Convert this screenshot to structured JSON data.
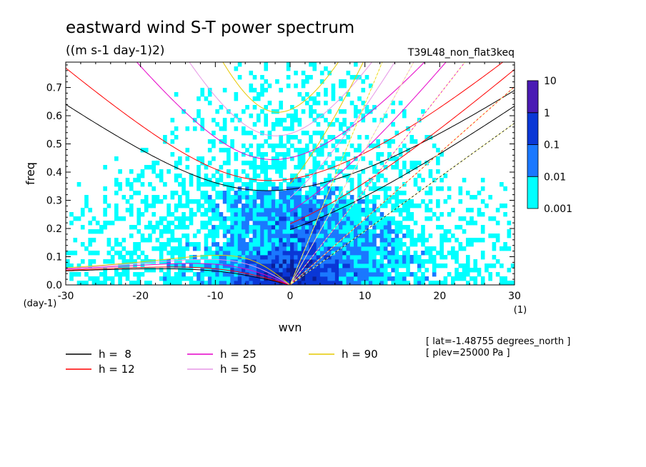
{
  "chart_data": {
    "type": "heatmap",
    "title": "eastward wind S-T power spectrum",
    "subtitle": "((m s-1 day-1)2)",
    "run_label": "T39L48_non_flat3keq",
    "xlabel": "wvn",
    "xunit": "(1)",
    "ylabel": "freq",
    "yunit": "(day-1)",
    "xlim": [
      -30,
      30
    ],
    "ylim": [
      0,
      0.79
    ],
    "xticks": [
      -30,
      -20,
      -10,
      0,
      10,
      20,
      30
    ],
    "yticks": [
      0.0,
      0.1,
      0.2,
      0.3,
      0.4,
      0.5,
      0.6,
      0.7
    ],
    "xtick_labels": [
      "-30",
      "-20",
      "-10",
      "0",
      "10",
      "20",
      "30"
    ],
    "ytick_labels": [
      "0.0",
      "0.1",
      "0.2",
      "0.3",
      "0.4",
      "0.5",
      "0.6",
      "0.7"
    ],
    "colorbar": {
      "levels": [
        "0.001",
        "0.01",
        "0.1",
        "1",
        "10"
      ],
      "colors": [
        "#00ffff",
        "#1a78ff",
        "#0a37d6",
        "#0a1e96",
        "#4a1ab4"
      ]
    },
    "background_color": "#ffffff",
    "dispersion_curves": [
      {
        "label": "h =  8",
        "h": 8,
        "color": "#000000"
      },
      {
        "label": "h = 12",
        "h": 12,
        "color": "#ff0000"
      },
      {
        "label": "h = 25",
        "h": 25,
        "color": "#e600c8"
      },
      {
        "label": "h = 50",
        "h": 50,
        "color": "#e696e6"
      },
      {
        "label": "h = 90",
        "h": 90,
        "color": "#e6c800"
      }
    ],
    "kelvin_line_color": "#ffff96",
    "annotations": [
      "[ lat=-1.48755 degrees_north ]",
      "[ plev=25000 Pa ]"
    ]
  }
}
